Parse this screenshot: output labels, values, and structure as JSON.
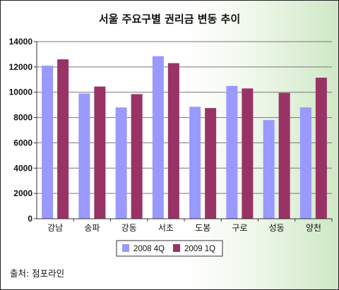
{
  "chart_data": {
    "type": "bar",
    "title": "서울 주요구별 권리금 변동 추이",
    "categories": [
      "강남",
      "송파",
      "강동",
      "서초",
      "도봉",
      "구로",
      "성동",
      "양천"
    ],
    "series": [
      {
        "name": "2008 4Q",
        "color": "#9999ff",
        "values": [
          12100,
          9900,
          8800,
          12850,
          8850,
          10500,
          7800,
          8800
        ]
      },
      {
        "name": "2009 1Q",
        "color": "#993366",
        "values": [
          12600,
          10450,
          9850,
          12300,
          8750,
          10300,
          9950,
          11150
        ]
      }
    ],
    "ylim": [
      0,
      14000
    ],
    "yticks": [
      0,
      2000,
      4000,
      6000,
      8000,
      10000,
      12000,
      14000
    ],
    "grid": true,
    "legend_position": "bottom"
  },
  "source_text": "출처: 점포라인"
}
